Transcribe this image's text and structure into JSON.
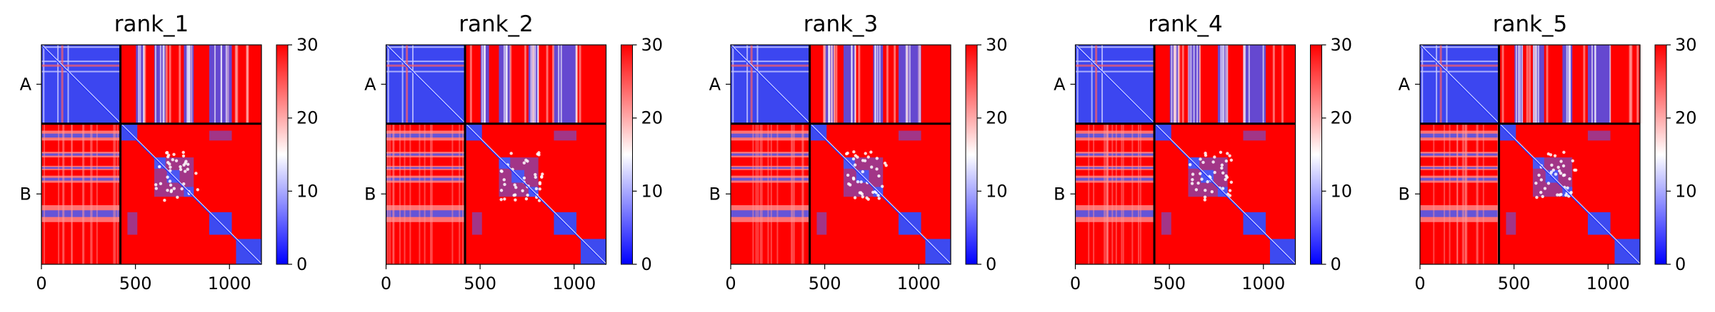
{
  "colors": {
    "low": "#0000ff",
    "mid": "#ffffff",
    "high": "#ff0000",
    "divider": "#000000"
  },
  "colorbar": {
    "range": [
      0,
      30
    ],
    "ticks": [
      "0",
      "10",
      "20",
      "30"
    ],
    "colormap": "bwr"
  },
  "chart_data": [
    {
      "type": "heatmap",
      "title": "rank_1",
      "chain_labels": [
        "A",
        "B"
      ],
      "chain_boundary": 420,
      "total_length": 1170,
      "x_ticks": [
        "0",
        "500",
        "1000"
      ],
      "x_tick_values": [
        0,
        500,
        1000
      ],
      "vmin": 0,
      "vmax": 30
    },
    {
      "type": "heatmap",
      "title": "rank_2",
      "chain_labels": [
        "A",
        "B"
      ],
      "chain_boundary": 420,
      "total_length": 1170,
      "x_ticks": [
        "0",
        "500",
        "1000"
      ],
      "x_tick_values": [
        0,
        500,
        1000
      ],
      "vmin": 0,
      "vmax": 30
    },
    {
      "type": "heatmap",
      "title": "rank_3",
      "chain_labels": [
        "A",
        "B"
      ],
      "chain_boundary": 420,
      "total_length": 1170,
      "x_ticks": [
        "0",
        "500",
        "1000"
      ],
      "x_tick_values": [
        0,
        500,
        1000
      ],
      "vmin": 0,
      "vmax": 30
    },
    {
      "type": "heatmap",
      "title": "rank_4",
      "chain_labels": [
        "A",
        "B"
      ],
      "chain_boundary": 420,
      "total_length": 1170,
      "x_ticks": [
        "0",
        "500",
        "1000"
      ],
      "x_tick_values": [
        0,
        500,
        1000
      ],
      "vmin": 0,
      "vmax": 30
    },
    {
      "type": "heatmap",
      "title": "rank_5",
      "chain_labels": [
        "A",
        "B"
      ],
      "chain_boundary": 420,
      "total_length": 1170,
      "x_ticks": [
        "0",
        "500",
        "1000"
      ],
      "x_tick_values": [
        0,
        500,
        1000
      ],
      "vmin": 0,
      "vmax": 30
    }
  ]
}
